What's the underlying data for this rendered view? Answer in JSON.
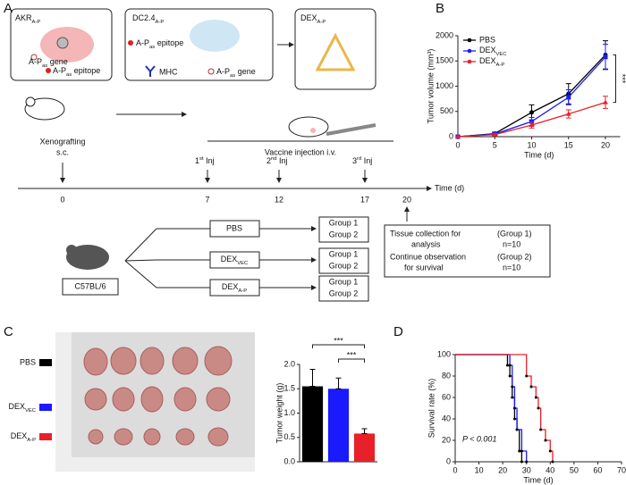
{
  "figure": {
    "panel_labels": [
      "A",
      "B",
      "C",
      "D"
    ],
    "a": {
      "box1_title": {
        "text": "AKR",
        "sub": "A-P"
      },
      "box1_gene": {
        "text": "A-P",
        "sub": "as",
        "after": " gene"
      },
      "box1_epitope": {
        "text": "A-P",
        "sub": "as",
        "after": " epitope"
      },
      "box2_title": {
        "text": "DC2.4",
        "sub": "A-P"
      },
      "box2_epitope": {
        "text": "A-P",
        "sub": "as",
        "after": " epitope"
      },
      "box2_mhc": "MHC",
      "box2_gene": {
        "text": "A-P",
        "sub": "as",
        "after": " gene"
      },
      "box3_title": {
        "text": "DEX",
        "sub": "A-P"
      },
      "xeno": [
        "Xenografting",
        "s.c."
      ],
      "vaccine": "Vaccine injection i.v.",
      "injections": [
        {
          "text": "1",
          "sup": "st",
          "after": " Inj"
        },
        {
          "text": "2",
          "sup": "nd",
          "after": " Inj"
        },
        {
          "text": "3",
          "sup": "rd",
          "after": " Inj"
        }
      ],
      "timeline_days": [
        "0",
        "7",
        "12",
        "17",
        "20"
      ],
      "timeline_label": "Time (d)",
      "mouse_strain": "C57BL/6",
      "treatments": [
        "PBS",
        {
          "text": "DEX",
          "sub": "VEC"
        },
        {
          "text": "DEX",
          "sub": "A-P"
        }
      ],
      "groups": [
        "Group 1",
        "Group 2"
      ],
      "outcome": {
        "tissue": [
          "Tissue collection for",
          "analysis"
        ],
        "tissue_group": "(Group 1)",
        "tissue_n": "n=10",
        "survival": [
          "Continue observation",
          "for survival"
        ],
        "survival_group": "(Group 2)",
        "survival_n": "n=10"
      }
    }
  },
  "chart_data": [
    {
      "type": "line",
      "x_label": "Time (d)",
      "y_label": "Tumor volume (mm³)",
      "x": [
        0,
        5,
        10,
        15,
        20
      ],
      "xlim": [
        0,
        22
      ],
      "xticks": [
        0,
        5,
        10,
        15,
        20
      ],
      "ylim": [
        0,
        2000
      ],
      "yticks": [
        0,
        500,
        1000,
        1500,
        2000
      ],
      "annotation": "***",
      "series": [
        {
          "name": "PBS",
          "color": "#000000",
          "marker": "circle",
          "values": [
            0,
            60,
            480,
            850,
            1620
          ],
          "errors": [
            0,
            30,
            150,
            200,
            280
          ]
        },
        {
          "name": {
            "text": "DEX",
            "sub": "VEC"
          },
          "color": "#1a1aff",
          "marker": "square",
          "values": [
            0,
            50,
            300,
            780,
            1580
          ],
          "errors": [
            0,
            30,
            80,
            150,
            250
          ]
        },
        {
          "name": {
            "text": "DEX",
            "sub": "A-P"
          },
          "color": "#e8202a",
          "marker": "triangle",
          "values": [
            0,
            40,
            230,
            450,
            680
          ],
          "errors": [
            0,
            20,
            60,
            80,
            120
          ]
        }
      ]
    },
    {
      "type": "bar",
      "y_label": "Tumor weight (g)",
      "ylim": [
        0,
        2
      ],
      "yticks": [
        {
          "value": 0,
          "label": "0.0"
        },
        {
          "value": 0.5,
          "label": "0.5"
        },
        {
          "value": 1,
          "label": "1.0"
        },
        {
          "value": 1.5,
          "label": "1.5"
        },
        {
          "value": 2,
          "label": "2.0"
        }
      ],
      "annotations": [
        "***",
        "***"
      ],
      "series": [
        {
          "name": "PBS",
          "color": "#000000",
          "values": [
            1.55
          ],
          "errors": [
            0.35
          ]
        },
        {
          "name": {
            "text": "DEX",
            "sub": "VEC"
          },
          "color": "#1a1aff",
          "values": [
            1.5
          ],
          "errors": [
            0.22
          ]
        },
        {
          "name": {
            "text": "DEX",
            "sub": "A-P"
          },
          "color": "#e8202a",
          "values": [
            0.58
          ],
          "errors": [
            0.1
          ]
        }
      ]
    },
    {
      "type": "step",
      "x_label": "Time (d)",
      "y_label": "Survival rate (%)",
      "annotation": "P < 0.001",
      "xlim": [
        0,
        70
      ],
      "xticks": [
        0,
        10,
        20,
        30,
        40,
        50,
        60,
        70
      ],
      "ylim": [
        0,
        100
      ],
      "yticks": [
        0,
        20,
        40,
        60,
        80,
        100
      ],
      "series": [
        {
          "color": "#000000",
          "x": [
            0,
            22,
            23,
            24,
            25,
            26,
            27,
            28
          ],
          "values": [
            100,
            90,
            80,
            60,
            40,
            30,
            10,
            0
          ]
        },
        {
          "color": "#1a1aff",
          "x": [
            0,
            23,
            24,
            25,
            26,
            28,
            30
          ],
          "values": [
            100,
            90,
            70,
            50,
            30,
            10,
            0
          ]
        },
        {
          "color": "#e8202a",
          "x": [
            0,
            30,
            32,
            34,
            35,
            36,
            38,
            40,
            41
          ],
          "values": [
            100,
            80,
            70,
            60,
            50,
            30,
            20,
            10,
            0
          ]
        }
      ]
    }
  ]
}
